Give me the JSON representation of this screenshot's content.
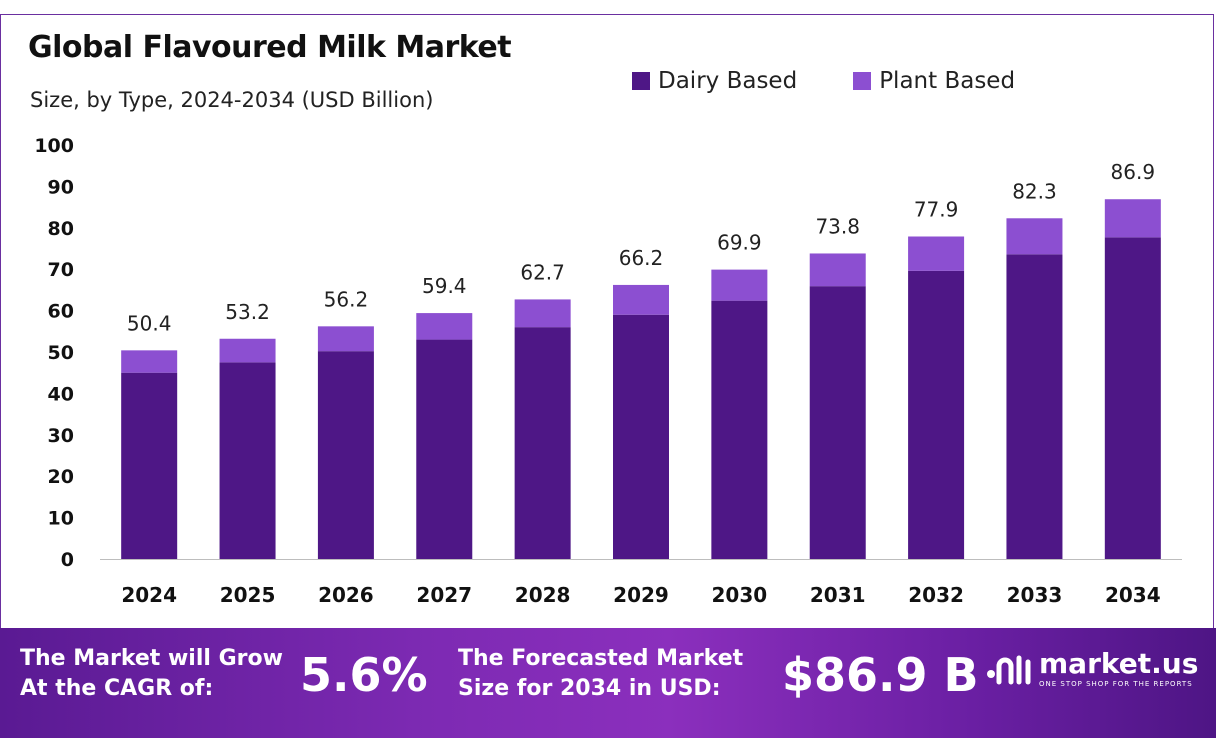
{
  "header": {
    "title": "Global Flavoured Milk Market",
    "subtitle": "Size, by Type, 2024-2034 (USD Billion)"
  },
  "legend": {
    "items": [
      {
        "label": "Dairy Based",
        "color": "#4e1786"
      },
      {
        "label": "Plant Based",
        "color": "#8c4fd1"
      }
    ]
  },
  "chart_data": {
    "type": "bar",
    "stacked": true,
    "title": "Global Flavoured Milk Market",
    "subtitle": "Size, by Type, 2024-2034 (USD Billion)",
    "categories": [
      "2024",
      "2025",
      "2026",
      "2027",
      "2028",
      "2029",
      "2030",
      "2031",
      "2032",
      "2033",
      "2034"
    ],
    "series": [
      {
        "name": "Dairy Based",
        "color": "#4e1786",
        "values": [
          45.0,
          47.5,
          50.2,
          53.0,
          56.0,
          59.0,
          62.4,
          65.9,
          69.6,
          73.6,
          77.7
        ]
      },
      {
        "name": "Plant Based",
        "color": "#8c4fd1",
        "values": [
          5.4,
          5.7,
          6.0,
          6.4,
          6.7,
          7.2,
          7.5,
          7.9,
          8.3,
          8.7,
          9.2
        ]
      }
    ],
    "totals": [
      50.4,
      53.2,
      56.2,
      59.4,
      62.7,
      66.2,
      69.9,
      73.8,
      77.9,
      82.3,
      86.9
    ],
    "total_labels": [
      "50.4",
      "53.2",
      "56.2",
      "59.4",
      "62.7",
      "66.2",
      "69.9",
      "73.8",
      "77.9",
      "82.3",
      "86.9"
    ],
    "yticks": [
      "0",
      "10",
      "20",
      "30",
      "40",
      "50",
      "60",
      "70",
      "80",
      "90",
      "100"
    ],
    "ylim": [
      0,
      100
    ],
    "xlabel": "",
    "ylabel": "",
    "grid": false,
    "legend_position": "top-right"
  },
  "footer": {
    "cagr_line1": "The Market will Grow",
    "cagr_line2": "At the CAGR of:",
    "cagr_value": "5.6%",
    "forecast_line1": "The Forecasted Market",
    "forecast_line2": "Size for 2034 in USD:",
    "forecast_value": "$86.9 B",
    "brand": "market.us",
    "brand_tagline": "ONE STOP SHOP FOR THE REPORTS"
  }
}
